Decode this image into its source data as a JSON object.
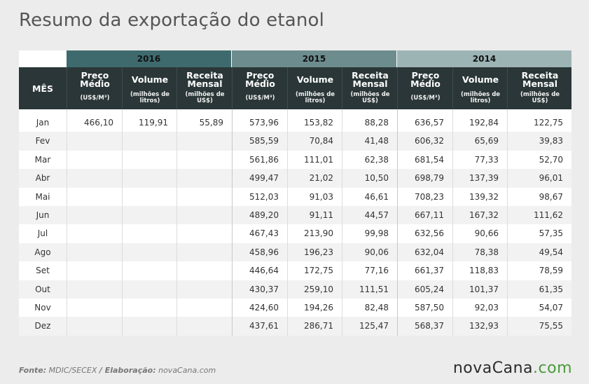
{
  "title": "Resumo da exportação do etanol",
  "years": [
    {
      "label": "2016",
      "color": "#3e6a6e"
    },
    {
      "label": "2015",
      "color": "#6d8c8e"
    },
    {
      "label": "2014",
      "color": "#9db4b5"
    }
  ],
  "month_header": "MÊS",
  "columns": [
    {
      "name": "Preço Médio",
      "unit": "(US$/M³)"
    },
    {
      "name": "Volume",
      "unit": "(milhões de litros)"
    },
    {
      "name": "Receita Mensal",
      "unit": "(milhões de US$)"
    }
  ],
  "rows": [
    {
      "month": "Jan",
      "v": [
        "466,10",
        "119,91",
        "55,89",
        "573,96",
        "153,82",
        "88,28",
        "636,57",
        "192,84",
        "122,75"
      ]
    },
    {
      "month": "Fev",
      "v": [
        "",
        "",
        "",
        "585,59",
        "70,84",
        "41,48",
        "606,32",
        "65,69",
        "39,83"
      ]
    },
    {
      "month": "Mar",
      "v": [
        "",
        "",
        "",
        "561,86",
        "111,01",
        "62,38",
        "681,54",
        "77,33",
        "52,70"
      ]
    },
    {
      "month": "Abr",
      "v": [
        "",
        "",
        "",
        "499,47",
        "21,02",
        "10,50",
        "698,79",
        "137,39",
        "96,01"
      ]
    },
    {
      "month": "Mai",
      "v": [
        "",
        "",
        "",
        "512,03",
        "91,03",
        "46,61",
        "708,23",
        "139,32",
        "98,67"
      ]
    },
    {
      "month": "Jun",
      "v": [
        "",
        "",
        "",
        "489,20",
        "91,11",
        "44,57",
        "667,11",
        "167,32",
        "111,62"
      ]
    },
    {
      "month": "Jul",
      "v": [
        "",
        "",
        "",
        "467,43",
        "213,90",
        "99,98",
        "632,56",
        "90,66",
        "57,35"
      ]
    },
    {
      "month": "Ago",
      "v": [
        "",
        "",
        "",
        "458,96",
        "196,23",
        "90,06",
        "632,04",
        "78,38",
        "49,54"
      ]
    },
    {
      "month": "Set",
      "v": [
        "",
        "",
        "",
        "446,64",
        "172,75",
        "77,16",
        "661,37",
        "118,83",
        "78,59"
      ]
    },
    {
      "month": "Out",
      "v": [
        "",
        "",
        "",
        "430,37",
        "259,10",
        "111,51",
        "605,24",
        "101,37",
        "61,35"
      ]
    },
    {
      "month": "Nov",
      "v": [
        "",
        "",
        "",
        "424,60",
        "194,26",
        "82,48",
        "587,50",
        "92,03",
        "54,07"
      ]
    },
    {
      "month": "Dez",
      "v": [
        "",
        "",
        "",
        "437,61",
        "286,71",
        "125,47",
        "568,37",
        "132,93",
        "75,55"
      ]
    }
  ],
  "footer": {
    "source_label": "Fonte:",
    "source_value": "MDIC/SECEX",
    "credit_label": "/ Elaboração:",
    "credit_value": "novaCana.com"
  },
  "logo": {
    "main": "novaCana",
    "suffix": ".com"
  }
}
